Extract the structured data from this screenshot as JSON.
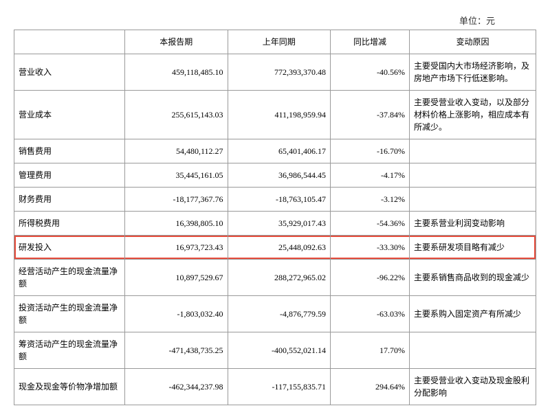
{
  "unit_label": "单位：元",
  "headers": {
    "col0": "",
    "col1": "本报告期",
    "col2": "上年同期",
    "col3": "同比增减",
    "col4": "变动原因"
  },
  "rows": [
    {
      "label": "营业收入",
      "current": "459,118,485.10",
      "prior": "772,393,370.48",
      "change": "-40.56%",
      "reason": "主要受国内大市场经济影响，及房地产市场下行低迷影响。",
      "highlighted": false
    },
    {
      "label": "营业成本",
      "current": "255,615,143.03",
      "prior": "411,198,959.94",
      "change": "-37.84%",
      "reason": "主要受营业收入变动，以及部分材料价格上涨影响，相应成本有所减少。",
      "highlighted": false
    },
    {
      "label": "销售费用",
      "current": "54,480,112.27",
      "prior": "65,401,406.17",
      "change": "-16.70%",
      "reason": "",
      "highlighted": false
    },
    {
      "label": "管理费用",
      "current": "35,445,161.05",
      "prior": "36,986,544.45",
      "change": "-4.17%",
      "reason": "",
      "highlighted": false
    },
    {
      "label": "财务费用",
      "current": "-18,177,367.76",
      "prior": "-18,763,105.47",
      "change": "-3.12%",
      "reason": "",
      "highlighted": false
    },
    {
      "label": "所得税费用",
      "current": "16,398,805.10",
      "prior": "35,929,017.43",
      "change": "-54.36%",
      "reason": "主要系营业利润变动影响",
      "highlighted": false
    },
    {
      "label": "研发投入",
      "current": "16,973,723.43",
      "prior": "25,448,092.63",
      "change": "-33.30%",
      "reason": "主要系研发项目略有减少",
      "highlighted": true
    },
    {
      "label": "经营活动产生的现金流量净额",
      "current": "10,897,529.67",
      "prior": "288,272,965.02",
      "change": "-96.22%",
      "reason": "主要系销售商品收到的现金减少",
      "highlighted": false
    },
    {
      "label": "投资活动产生的现金流量净额",
      "current": "-1,803,032.40",
      "prior": "-4,876,779.59",
      "change": "-63.03%",
      "reason": "主要系购入固定资产有所减少",
      "highlighted": false
    },
    {
      "label": "筹资活动产生的现金流量净额",
      "current": "-471,438,735.25",
      "prior": "-400,552,021.14",
      "change": "17.70%",
      "reason": "",
      "highlighted": false
    },
    {
      "label": "现金及现金等价物净增加额",
      "current": "-462,344,237.98",
      "prior": "-117,155,835.71",
      "change": "294.64%",
      "reason": "主要受营业收入变动及现金股利分配影响",
      "highlighted": false
    }
  ],
  "styling": {
    "highlight_color": "#e74c3c",
    "border_color": "#999999",
    "font_size": 12,
    "background": "#ffffff"
  }
}
